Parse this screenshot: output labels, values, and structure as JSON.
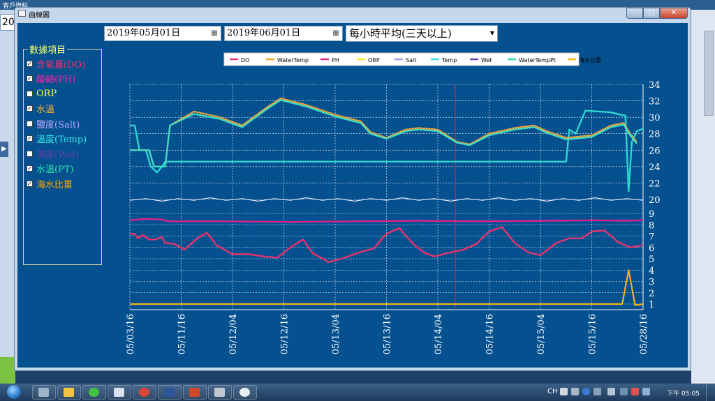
{
  "background": {
    "window_title": "客戶資料",
    "field_text": "20"
  },
  "window": {
    "title": "曲線圖",
    "controls": {
      "minimize": "–",
      "maximize": "□",
      "close": "✕"
    }
  },
  "toolbar": {
    "start_date": "2019年05月01日",
    "end_date": "2019年06月01日",
    "interval": "每小時平均(三天以上)"
  },
  "data_items": {
    "title": "數據項目",
    "items": [
      {
        "label": "含氧量(DO)",
        "checked": true,
        "color": "#ff2b6a"
      },
      {
        "label": "酸鹼(PH)",
        "checked": true,
        "color": "#ff1fa6"
      },
      {
        "label": "ORP",
        "checked": false,
        "color": "#ffff33"
      },
      {
        "label": "水溫",
        "checked": true,
        "color": "#ffb629"
      },
      {
        "label": "鹽度(Salt)",
        "checked": false,
        "color": "#b9a6ff"
      },
      {
        "label": "溫度(Temp)",
        "checked": true,
        "color": "#33e8e8"
      },
      {
        "label": "濕度(Wet)",
        "checked": false,
        "color": "#6a3fb0"
      },
      {
        "label": "水溫(PT)",
        "checked": true,
        "color": "#2fe0b0"
      },
      {
        "label": "海水比重",
        "checked": true,
        "color": "#ffa600"
      }
    ]
  },
  "chart_data": {
    "type": "line",
    "title": "",
    "legend": {
      "placement": "top-center",
      "entries": [
        {
          "name": "DO",
          "color": "#e8336e"
        },
        {
          "name": "WaterTemp",
          "color": "#f5a623"
        },
        {
          "name": "PH",
          "color": "#e0218a"
        },
        {
          "name": "ORP",
          "color": "#f2ea1a"
        },
        {
          "name": "Salt",
          "color": "#a79ae6"
        },
        {
          "name": "Temp",
          "color": "#36d9e6"
        },
        {
          "name": "Wet",
          "color": "#6b3fb5"
        },
        {
          "name": "WaterTempPt",
          "color": "#2fd6b0"
        },
        {
          "name": "海水比重",
          "color": "#f5b400"
        }
      ]
    },
    "x_ticks": [
      "05/03/16",
      "05/11/16",
      "05/12/04",
      "05/12/16",
      "05/13/04",
      "05/13/16",
      "05/14/04",
      "05/14/16",
      "05/15/04",
      "05/15/16",
      "05/28/16"
    ],
    "y_ticks_upper": [
      20,
      22,
      24,
      26,
      28,
      30,
      32,
      34
    ],
    "y_ticks_lower": [
      1,
      2,
      3,
      4,
      5,
      6,
      7,
      8,
      9
    ],
    "grid": true,
    "cursor_line_x": 0.634,
    "series": [
      {
        "name": "WaterTemp",
        "color": "#e8a33a",
        "axis": "upper",
        "values": [
          [
            0,
            26
          ],
          [
            0.06,
            26
          ],
          [
            0.075,
            24
          ],
          [
            0.11,
            24
          ],
          [
            0.125,
            29
          ],
          [
            0.2,
            30.7
          ],
          [
            0.28,
            30
          ],
          [
            0.35,
            29
          ],
          [
            0.42,
            31
          ],
          [
            0.47,
            32.3
          ],
          [
            0.55,
            31.5
          ],
          [
            0.64,
            30.3
          ],
          [
            0.72,
            29.5
          ],
          [
            0.75,
            28.2
          ],
          [
            0.8,
            27.5
          ],
          [
            0.86,
            28.5
          ],
          [
            0.9,
            28.7
          ],
          [
            0.96,
            28.5
          ],
          [
            1.02,
            27
          ],
          [
            1.06,
            26.7
          ],
          [
            1.12,
            28
          ],
          [
            1.2,
            28.7
          ],
          [
            1.26,
            29
          ],
          [
            1.3,
            28.3
          ],
          [
            1.36,
            27.5
          ],
          [
            1.44,
            27.8
          ],
          [
            1.5,
            29
          ],
          [
            1.54,
            29.3
          ],
          [
            1.56,
            28
          ],
          [
            1.58,
            27
          ]
        ]
      },
      {
        "name": "Temp",
        "color": "#3fe0c8",
        "axis": "upper",
        "values": [
          [
            0,
            26
          ],
          [
            0.06,
            26
          ],
          [
            0.075,
            24
          ],
          [
            0.11,
            24
          ],
          [
            0.125,
            29
          ],
          [
            0.2,
            30.4
          ],
          [
            0.28,
            29.8
          ],
          [
            0.35,
            28.8
          ],
          [
            0.42,
            30.8
          ],
          [
            0.47,
            32.1
          ],
          [
            0.55,
            31.3
          ],
          [
            0.64,
            30.1
          ],
          [
            0.72,
            29.3
          ],
          [
            0.75,
            28
          ],
          [
            0.8,
            27.4
          ],
          [
            0.86,
            28.3
          ],
          [
            0.9,
            28.5
          ],
          [
            0.96,
            28.3
          ],
          [
            1.02,
            26.9
          ],
          [
            1.06,
            26.6
          ],
          [
            1.12,
            27.8
          ],
          [
            1.2,
            28.5
          ],
          [
            1.26,
            28.8
          ],
          [
            1.3,
            28.1
          ],
          [
            1.36,
            27.3
          ],
          [
            1.44,
            27.6
          ],
          [
            1.5,
            28.8
          ],
          [
            1.54,
            29.1
          ],
          [
            1.56,
            27.8
          ],
          [
            1.58,
            26.8
          ]
        ]
      },
      {
        "name": "WaterTempPt",
        "color": "#2fd6d0",
        "axis": "upper",
        "values": [
          [
            0,
            29
          ],
          [
            0.015,
            29
          ],
          [
            0.03,
            26
          ],
          [
            0.05,
            26
          ],
          [
            0.065,
            24
          ],
          [
            0.085,
            23.3
          ],
          [
            0.1,
            24
          ],
          [
            0.11,
            24.6
          ],
          [
            0.13,
            24.6
          ],
          [
            1.0,
            24.6
          ],
          [
            1.36,
            24.6
          ],
          [
            1.37,
            28.5
          ],
          [
            1.39,
            28
          ],
          [
            1.42,
            30.8
          ],
          [
            1.5,
            30.6
          ],
          [
            1.53,
            30.3
          ],
          [
            1.545,
            30.2
          ],
          [
            1.555,
            21
          ],
          [
            1.565,
            27
          ],
          [
            1.58,
            28.3
          ],
          [
            1.6,
            28.6
          ]
        ]
      },
      {
        "name": "Salt",
        "color": "#e6e6f5",
        "axis": "upper",
        "values": [
          [
            0,
            19.9
          ],
          [
            0.05,
            20.1
          ],
          [
            0.1,
            19.8
          ],
          [
            0.15,
            20.1
          ],
          [
            0.2,
            19.9
          ],
          [
            0.25,
            20.2
          ],
          [
            0.3,
            19.9
          ],
          [
            0.35,
            20.1
          ],
          [
            0.4,
            19.8
          ],
          [
            0.45,
            20.1
          ],
          [
            0.5,
            19.9
          ],
          [
            0.55,
            20.2
          ],
          [
            0.6,
            19.9
          ],
          [
            0.65,
            20.1
          ],
          [
            0.7,
            19.8
          ],
          [
            0.75,
            20.1
          ],
          [
            0.8,
            19.9
          ],
          [
            0.85,
            20.2
          ],
          [
            0.9,
            19.9
          ],
          [
            0.95,
            20.1
          ],
          [
            1.0,
            19.8
          ],
          [
            1.05,
            20.1
          ],
          [
            1.1,
            19.9
          ],
          [
            1.15,
            20.2
          ],
          [
            1.2,
            19.9
          ],
          [
            1.25,
            20.1
          ],
          [
            1.3,
            19.8
          ],
          [
            1.35,
            20.1
          ],
          [
            1.4,
            19.9
          ],
          [
            1.45,
            20.2
          ],
          [
            1.5,
            19.9
          ],
          [
            1.55,
            20.1
          ],
          [
            1.6,
            19.9
          ]
        ]
      },
      {
        "name": "PH",
        "color": "#e0218a",
        "axis": "lower",
        "values": [
          [
            0,
            8.4
          ],
          [
            0.04,
            8.5
          ],
          [
            0.07,
            8.5
          ],
          [
            0.1,
            8.45
          ],
          [
            0.12,
            8.3
          ],
          [
            0.3,
            8.3
          ],
          [
            0.5,
            8.25
          ],
          [
            0.7,
            8.3
          ],
          [
            0.9,
            8.35
          ],
          [
            1.1,
            8.3
          ],
          [
            1.3,
            8.35
          ],
          [
            1.45,
            8.4
          ],
          [
            1.55,
            8.35
          ],
          [
            1.6,
            8.4
          ]
        ]
      },
      {
        "name": "DO",
        "color": "#e8336e",
        "axis": "lower",
        "values": [
          [
            0,
            7.2
          ],
          [
            0.015,
            7.2
          ],
          [
            0.025,
            6.8
          ],
          [
            0.04,
            7.1
          ],
          [
            0.06,
            6.7
          ],
          [
            0.08,
            6.7
          ],
          [
            0.1,
            6.9
          ],
          [
            0.11,
            6.4
          ],
          [
            0.14,
            6.3
          ],
          [
            0.17,
            5.8
          ],
          [
            0.21,
            6.8
          ],
          [
            0.24,
            7.3
          ],
          [
            0.27,
            6.2
          ],
          [
            0.32,
            5.4
          ],
          [
            0.37,
            5.4
          ],
          [
            0.42,
            5.2
          ],
          [
            0.46,
            5.1
          ],
          [
            0.5,
            6.0
          ],
          [
            0.54,
            6.7
          ],
          [
            0.57,
            5.5
          ],
          [
            0.62,
            4.7
          ],
          [
            0.67,
            5.1
          ],
          [
            0.72,
            5.6
          ],
          [
            0.76,
            5.9
          ],
          [
            0.8,
            7.2
          ],
          [
            0.84,
            7.7
          ],
          [
            0.88,
            6.4
          ],
          [
            0.92,
            5.5
          ],
          [
            0.95,
            5.2
          ],
          [
            0.99,
            5.5
          ],
          [
            1.04,
            5.8
          ],
          [
            1.08,
            6.3
          ],
          [
            1.12,
            7.4
          ],
          [
            1.16,
            7.8
          ],
          [
            1.2,
            6.4
          ],
          [
            1.24,
            5.6
          ],
          [
            1.28,
            5.3
          ],
          [
            1.33,
            6.4
          ],
          [
            1.37,
            6.8
          ],
          [
            1.41,
            6.8
          ],
          [
            1.44,
            7.4
          ],
          [
            1.48,
            7.5
          ],
          [
            1.52,
            6.5
          ],
          [
            1.56,
            6.0
          ],
          [
            1.6,
            6.2
          ]
        ]
      },
      {
        "name": "海水比重",
        "color": "#f2b21a",
        "axis": "lower",
        "values": [
          [
            0,
            1.0
          ],
          [
            1.0,
            1.0
          ],
          [
            1.5,
            1.0
          ],
          [
            1.535,
            1.0
          ],
          [
            1.555,
            4.0
          ],
          [
            1.575,
            0.9
          ],
          [
            1.6,
            1.0
          ]
        ]
      }
    ]
  },
  "taskbar": {
    "language": "CH",
    "clock": "下午 05:05"
  }
}
